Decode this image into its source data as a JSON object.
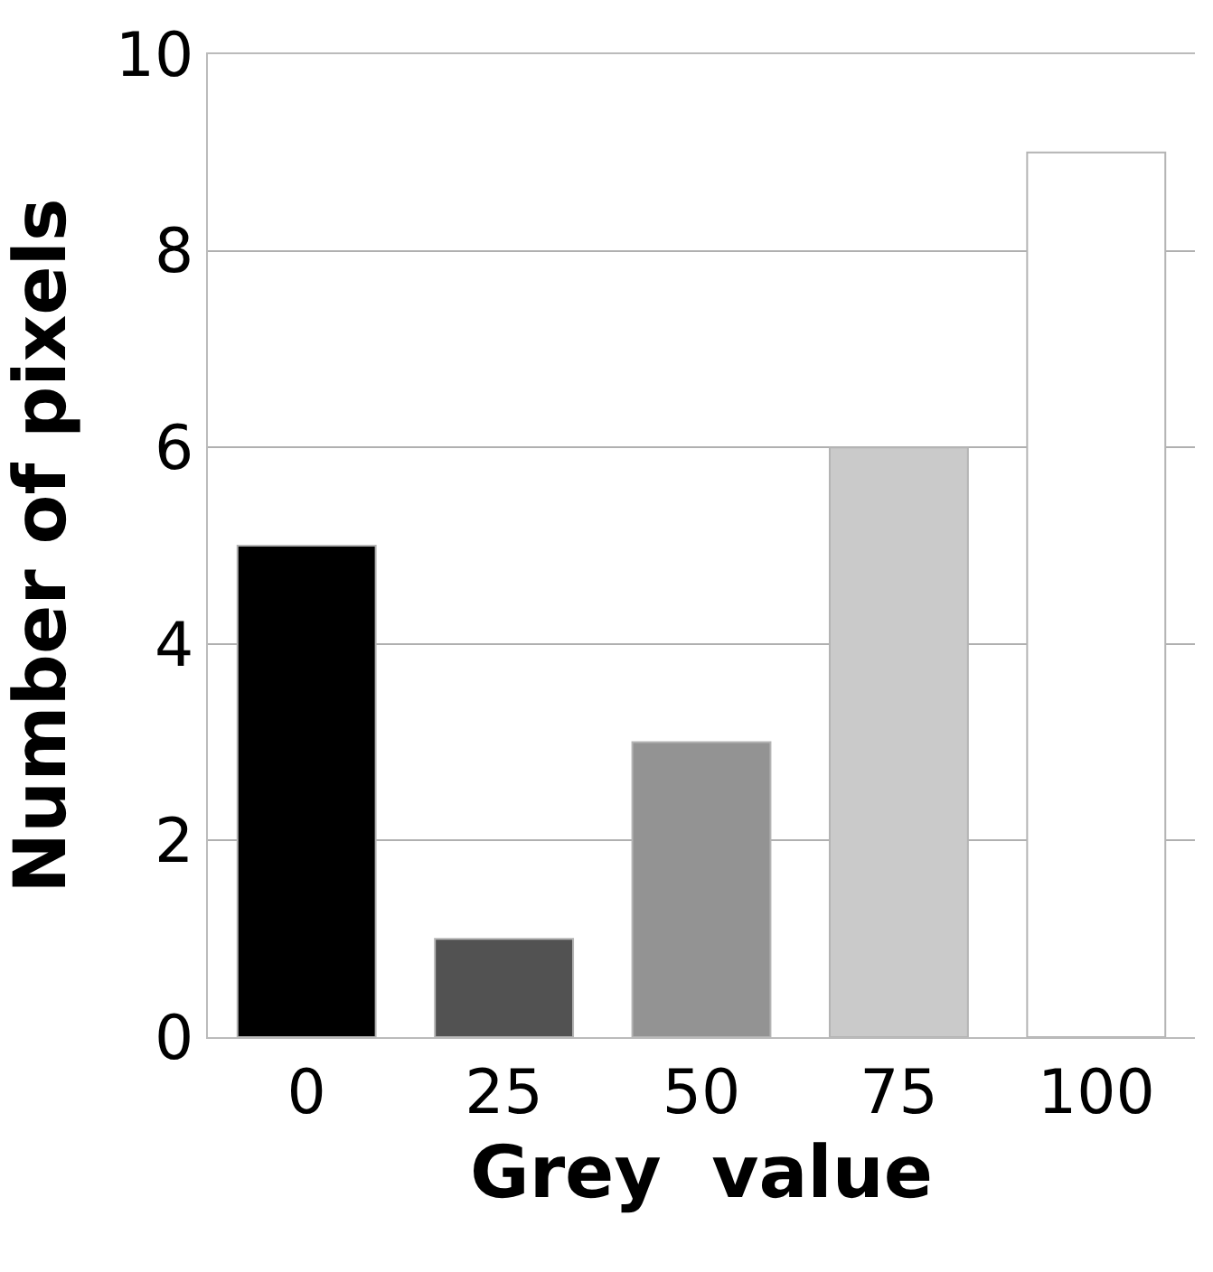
{
  "chart_data": {
    "type": "bar",
    "xlabel": "Grey  value",
    "ylabel": "Number of pixels",
    "categories": [
      "0",
      "25",
      "50",
      "75",
      "100"
    ],
    "values": [
      5,
      1,
      3,
      6,
      9
    ],
    "colors": [
      "#000000",
      "#525252",
      "#939393",
      "#cacaca",
      "#ffffff"
    ],
    "ylim": [
      0,
      10
    ],
    "yticks": [
      0,
      2,
      4,
      6,
      8,
      10
    ],
    "grid": "y"
  }
}
